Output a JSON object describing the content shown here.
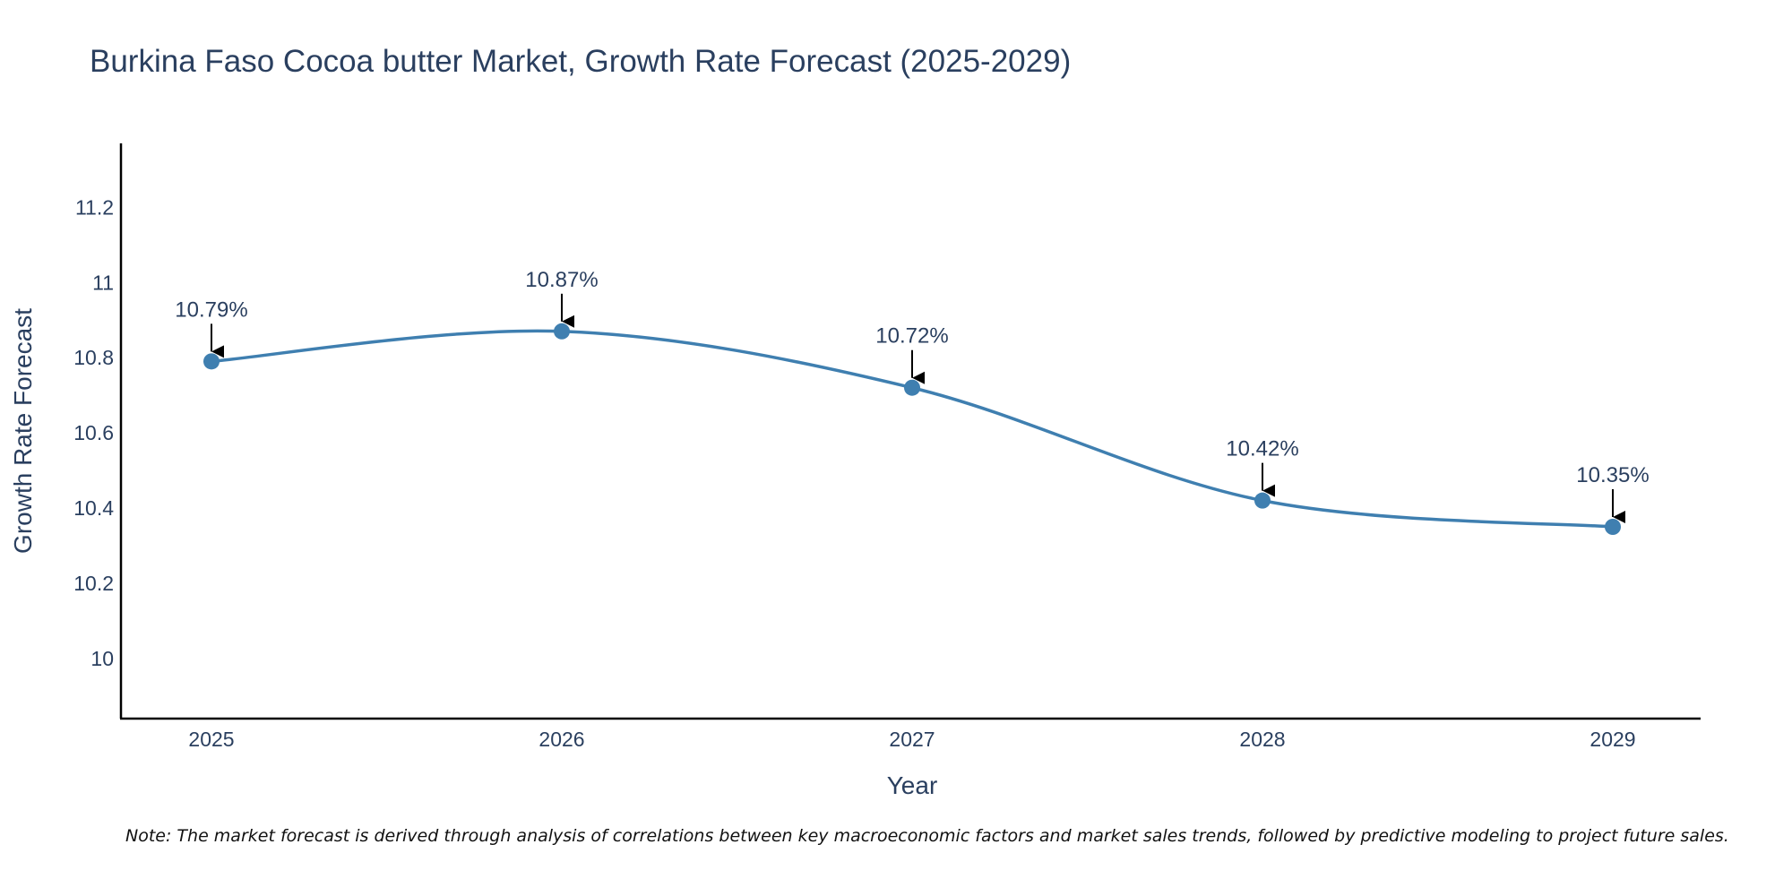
{
  "chart_data": {
    "type": "line",
    "title": "Burkina Faso Cocoa butter Market, Growth Rate Forecast (2025-2029)",
    "xlabel": "Year",
    "ylabel": "Growth Rate Forecast",
    "categories": [
      "2025",
      "2026",
      "2027",
      "2028",
      "2029"
    ],
    "values": [
      10.79,
      10.87,
      10.72,
      10.42,
      10.35
    ],
    "data_labels": [
      "10.79%",
      "10.87%",
      "10.72%",
      "10.42%",
      "10.35%"
    ],
    "ylim": [
      9.84,
      11.37
    ],
    "y_ticks": [
      10,
      10.2,
      10.4,
      10.6,
      10.8,
      11,
      11.2
    ],
    "y_tick_labels": [
      "10",
      "10.2",
      "10.4",
      "10.6",
      "10.8",
      "11",
      "11.2"
    ],
    "grid": false,
    "legend": "none",
    "line_shape": "spline",
    "note": "Note: The market forecast is derived through analysis of correlations between key macroeconomic factors and market sales trends, followed by predictive modeling to project future sales."
  },
  "colors": {
    "line": "#3f7fb0",
    "marker": "#3f7fb0",
    "axis": "#000000",
    "text": "#2a3f5f",
    "arrow": "#000000"
  }
}
